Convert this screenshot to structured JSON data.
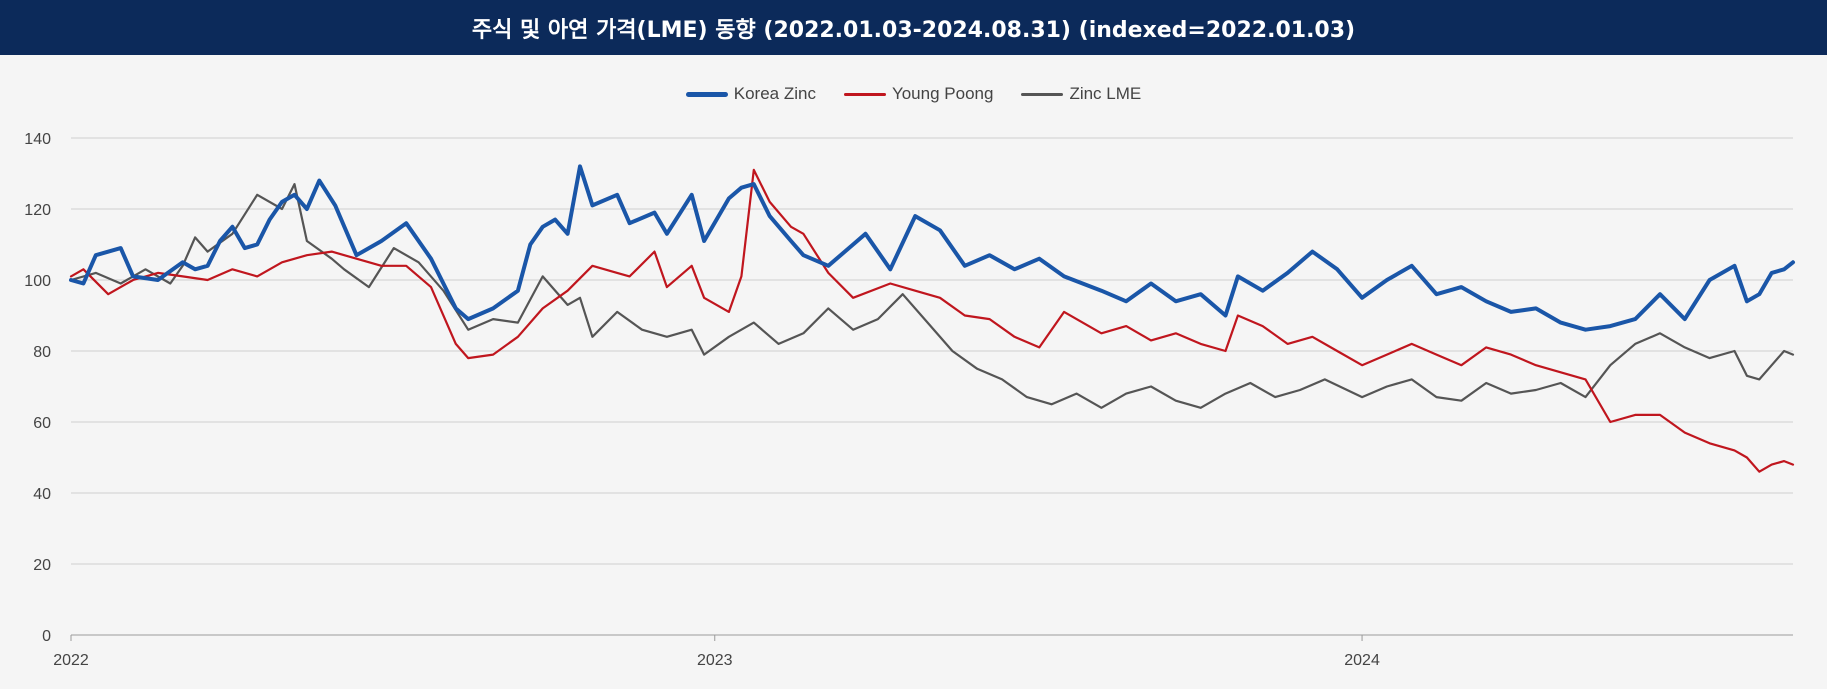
{
  "title": "주식 및 아연 가격(LME) 동향 (2022.01.03-2024.08.31) (indexed=2022.01.03)",
  "chart_data": {
    "type": "line",
    "title": "주식 및 아연 가격(LME) 동향 (2022.01.03-2024.08.31) (indexed=2022.01.03)",
    "xlabel": "",
    "ylabel": "",
    "x_range": [
      "2022-01-03",
      "2024-08-31"
    ],
    "ylim": [
      0,
      140
    ],
    "y_ticks": [
      "0",
      "20",
      "40",
      "60",
      "80",
      "100",
      "120",
      "140"
    ],
    "x_ticks": [
      {
        "label": "2022",
        "date": "2022-01-01"
      },
      {
        "label": "2023",
        "date": "2023-01-01"
      },
      {
        "label": "2024",
        "date": "2024-01-01"
      }
    ],
    "grid": true,
    "legend_position": "top-center",
    "series": [
      {
        "name": "Korea Zinc",
        "color": "#1a56a8",
        "points": [
          [
            "2022-01-03",
            100
          ],
          [
            "2022-01-10",
            99
          ],
          [
            "2022-01-17",
            107
          ],
          [
            "2022-01-31",
            109
          ],
          [
            "2022-02-07",
            101
          ],
          [
            "2022-02-21",
            100
          ],
          [
            "2022-03-07",
            105
          ],
          [
            "2022-03-14",
            103
          ],
          [
            "2022-03-21",
            104
          ],
          [
            "2022-03-28",
            111
          ],
          [
            "2022-04-04",
            115
          ],
          [
            "2022-04-11",
            109
          ],
          [
            "2022-04-18",
            110
          ],
          [
            "2022-04-25",
            117
          ],
          [
            "2022-05-02",
            122
          ],
          [
            "2022-05-09",
            124
          ],
          [
            "2022-05-16",
            120
          ],
          [
            "2022-05-23",
            128
          ],
          [
            "2022-06-01",
            121
          ],
          [
            "2022-06-13",
            107
          ],
          [
            "2022-06-27",
            111
          ],
          [
            "2022-07-11",
            116
          ],
          [
            "2022-07-25",
            106
          ],
          [
            "2022-08-08",
            92
          ],
          [
            "2022-08-15",
            89
          ],
          [
            "2022-08-29",
            92
          ],
          [
            "2022-09-12",
            97
          ],
          [
            "2022-09-19",
            110
          ],
          [
            "2022-09-26",
            115
          ],
          [
            "2022-10-03",
            117
          ],
          [
            "2022-10-10",
            113
          ],
          [
            "2022-10-17",
            132
          ],
          [
            "2022-10-24",
            121
          ],
          [
            "2022-11-07",
            124
          ],
          [
            "2022-11-14",
            116
          ],
          [
            "2022-11-28",
            119
          ],
          [
            "2022-12-05",
            113
          ],
          [
            "2022-12-19",
            124
          ],
          [
            "2022-12-26",
            111
          ],
          [
            "2023-01-09",
            123
          ],
          [
            "2023-01-16",
            126
          ],
          [
            "2023-01-23",
            127
          ],
          [
            "2023-02-01",
            118
          ],
          [
            "2023-02-13",
            111
          ],
          [
            "2023-02-20",
            107
          ],
          [
            "2023-03-06",
            104
          ],
          [
            "2023-03-20",
            110
          ],
          [
            "2023-03-27",
            113
          ],
          [
            "2023-04-10",
            103
          ],
          [
            "2023-04-24",
            118
          ],
          [
            "2023-05-08",
            114
          ],
          [
            "2023-05-22",
            104
          ],
          [
            "2023-06-05",
            107
          ],
          [
            "2023-06-19",
            103
          ],
          [
            "2023-07-03",
            106
          ],
          [
            "2023-07-17",
            101
          ],
          [
            "2023-08-07",
            97
          ],
          [
            "2023-08-21",
            94
          ],
          [
            "2023-09-04",
            99
          ],
          [
            "2023-09-18",
            94
          ],
          [
            "2023-10-02",
            96
          ],
          [
            "2023-10-16",
            90
          ],
          [
            "2023-10-23",
            101
          ],
          [
            "2023-11-06",
            97
          ],
          [
            "2023-11-20",
            102
          ],
          [
            "2023-12-04",
            108
          ],
          [
            "2023-12-18",
            103
          ],
          [
            "2024-01-01",
            95
          ],
          [
            "2024-01-15",
            100
          ],
          [
            "2024-01-29",
            104
          ],
          [
            "2024-02-12",
            96
          ],
          [
            "2024-02-26",
            98
          ],
          [
            "2024-03-11",
            94
          ],
          [
            "2024-03-25",
            91
          ],
          [
            "2024-04-08",
            92
          ],
          [
            "2024-04-22",
            88
          ],
          [
            "2024-05-06",
            86
          ],
          [
            "2024-05-20",
            87
          ],
          [
            "2024-06-03",
            89
          ],
          [
            "2024-06-17",
            96
          ],
          [
            "2024-07-01",
            89
          ],
          [
            "2024-07-15",
            100
          ],
          [
            "2024-07-29",
            104
          ],
          [
            "2024-08-05",
            94
          ],
          [
            "2024-08-12",
            96
          ],
          [
            "2024-08-19",
            102
          ],
          [
            "2024-08-26",
            103
          ],
          [
            "2024-08-31",
            105
          ]
        ]
      },
      {
        "name": "Young Poong",
        "color": "#c0161e",
        "points": [
          [
            "2022-01-03",
            101
          ],
          [
            "2022-01-10",
            103
          ],
          [
            "2022-01-24",
            96
          ],
          [
            "2022-02-07",
            100
          ],
          [
            "2022-02-21",
            102
          ],
          [
            "2022-03-07",
            101
          ],
          [
            "2022-03-21",
            100
          ],
          [
            "2022-04-04",
            103
          ],
          [
            "2022-04-18",
            101
          ],
          [
            "2022-05-02",
            105
          ],
          [
            "2022-05-16",
            107
          ],
          [
            "2022-05-30",
            108
          ],
          [
            "2022-06-13",
            106
          ],
          [
            "2022-06-27",
            104
          ],
          [
            "2022-07-11",
            104
          ],
          [
            "2022-07-25",
            98
          ],
          [
            "2022-08-08",
            82
          ],
          [
            "2022-08-15",
            78
          ],
          [
            "2022-08-29",
            79
          ],
          [
            "2022-09-12",
            84
          ],
          [
            "2022-09-26",
            92
          ],
          [
            "2022-10-10",
            97
          ],
          [
            "2022-10-24",
            104
          ],
          [
            "2022-11-07",
            102
          ],
          [
            "2022-11-14",
            101
          ],
          [
            "2022-11-28",
            108
          ],
          [
            "2022-12-05",
            98
          ],
          [
            "2022-12-19",
            104
          ],
          [
            "2022-12-26",
            95
          ],
          [
            "2023-01-09",
            91
          ],
          [
            "2023-01-16",
            101
          ],
          [
            "2023-01-23",
            131
          ],
          [
            "2023-02-01",
            122
          ],
          [
            "2023-02-13",
            115
          ],
          [
            "2023-02-20",
            113
          ],
          [
            "2023-03-06",
            102
          ],
          [
            "2023-03-20",
            95
          ],
          [
            "2023-04-10",
            99
          ],
          [
            "2023-04-24",
            97
          ],
          [
            "2023-05-08",
            95
          ],
          [
            "2023-05-22",
            90
          ],
          [
            "2023-06-05",
            89
          ],
          [
            "2023-06-19",
            84
          ],
          [
            "2023-07-03",
            81
          ],
          [
            "2023-07-17",
            91
          ],
          [
            "2023-08-07",
            85
          ],
          [
            "2023-08-21",
            87
          ],
          [
            "2023-09-04",
            83
          ],
          [
            "2023-09-18",
            85
          ],
          [
            "2023-10-02",
            82
          ],
          [
            "2023-10-16",
            80
          ],
          [
            "2023-10-23",
            90
          ],
          [
            "2023-11-06",
            87
          ],
          [
            "2023-11-20",
            82
          ],
          [
            "2023-12-04",
            84
          ],
          [
            "2023-12-18",
            80
          ],
          [
            "2024-01-01",
            76
          ],
          [
            "2024-01-15",
            79
          ],
          [
            "2024-01-29",
            82
          ],
          [
            "2024-02-12",
            79
          ],
          [
            "2024-02-26",
            76
          ],
          [
            "2024-03-11",
            81
          ],
          [
            "2024-03-25",
            79
          ],
          [
            "2024-04-08",
            76
          ],
          [
            "2024-04-22",
            74
          ],
          [
            "2024-05-06",
            72
          ],
          [
            "2024-05-20",
            60
          ],
          [
            "2024-06-03",
            62
          ],
          [
            "2024-06-17",
            62
          ],
          [
            "2024-07-01",
            57
          ],
          [
            "2024-07-15",
            54
          ],
          [
            "2024-07-29",
            52
          ],
          [
            "2024-08-05",
            50
          ],
          [
            "2024-08-12",
            46
          ],
          [
            "2024-08-19",
            48
          ],
          [
            "2024-08-26",
            49
          ],
          [
            "2024-08-31",
            48
          ]
        ]
      },
      {
        "name": "Zinc LME",
        "color": "#555555",
        "points": [
          [
            "2022-01-03",
            100
          ],
          [
            "2022-01-17",
            102
          ],
          [
            "2022-01-31",
            99
          ],
          [
            "2022-02-14",
            103
          ],
          [
            "2022-02-28",
            99
          ],
          [
            "2022-03-07",
            104
          ],
          [
            "2022-03-14",
            112
          ],
          [
            "2022-03-21",
            108
          ],
          [
            "2022-04-04",
            113
          ],
          [
            "2022-04-18",
            124
          ],
          [
            "2022-05-02",
            120
          ],
          [
            "2022-05-09",
            127
          ],
          [
            "2022-05-16",
            111
          ],
          [
            "2022-05-30",
            106
          ],
          [
            "2022-06-06",
            103
          ],
          [
            "2022-06-20",
            98
          ],
          [
            "2022-07-04",
            109
          ],
          [
            "2022-07-18",
            105
          ],
          [
            "2022-08-01",
            97
          ],
          [
            "2022-08-15",
            86
          ],
          [
            "2022-08-29",
            89
          ],
          [
            "2022-09-12",
            88
          ],
          [
            "2022-09-26",
            101
          ],
          [
            "2022-10-10",
            93
          ],
          [
            "2022-10-17",
            95
          ],
          [
            "2022-10-24",
            84
          ],
          [
            "2022-11-07",
            91
          ],
          [
            "2022-11-21",
            86
          ],
          [
            "2022-12-05",
            84
          ],
          [
            "2022-12-19",
            86
          ],
          [
            "2022-12-26",
            79
          ],
          [
            "2023-01-09",
            84
          ],
          [
            "2023-01-23",
            88
          ],
          [
            "2023-02-06",
            82
          ],
          [
            "2023-02-20",
            85
          ],
          [
            "2023-03-06",
            92
          ],
          [
            "2023-03-20",
            86
          ],
          [
            "2023-04-03",
            89
          ],
          [
            "2023-04-17",
            96
          ],
          [
            "2023-05-01",
            88
          ],
          [
            "2023-05-15",
            80
          ],
          [
            "2023-05-29",
            75
          ],
          [
            "2023-06-12",
            72
          ],
          [
            "2023-06-26",
            67
          ],
          [
            "2023-07-10",
            65
          ],
          [
            "2023-07-24",
            68
          ],
          [
            "2023-08-07",
            64
          ],
          [
            "2023-08-21",
            68
          ],
          [
            "2023-09-04",
            70
          ],
          [
            "2023-09-18",
            66
          ],
          [
            "2023-10-02",
            64
          ],
          [
            "2023-10-16",
            68
          ],
          [
            "2023-10-30",
            71
          ],
          [
            "2023-11-13",
            67
          ],
          [
            "2023-11-27",
            69
          ],
          [
            "2023-12-11",
            72
          ],
          [
            "2024-01-01",
            67
          ],
          [
            "2024-01-15",
            70
          ],
          [
            "2024-01-29",
            72
          ],
          [
            "2024-02-12",
            67
          ],
          [
            "2024-02-26",
            66
          ],
          [
            "2024-03-11",
            71
          ],
          [
            "2024-03-25",
            68
          ],
          [
            "2024-04-08",
            69
          ],
          [
            "2024-04-22",
            71
          ],
          [
            "2024-05-06",
            67
          ],
          [
            "2024-05-20",
            76
          ],
          [
            "2024-06-03",
            82
          ],
          [
            "2024-06-17",
            85
          ],
          [
            "2024-07-01",
            81
          ],
          [
            "2024-07-15",
            78
          ],
          [
            "2024-07-29",
            80
          ],
          [
            "2024-08-05",
            73
          ],
          [
            "2024-08-12",
            72
          ],
          [
            "2024-08-19",
            76
          ],
          [
            "2024-08-26",
            80
          ],
          [
            "2024-08-31",
            79
          ]
        ]
      }
    ]
  }
}
